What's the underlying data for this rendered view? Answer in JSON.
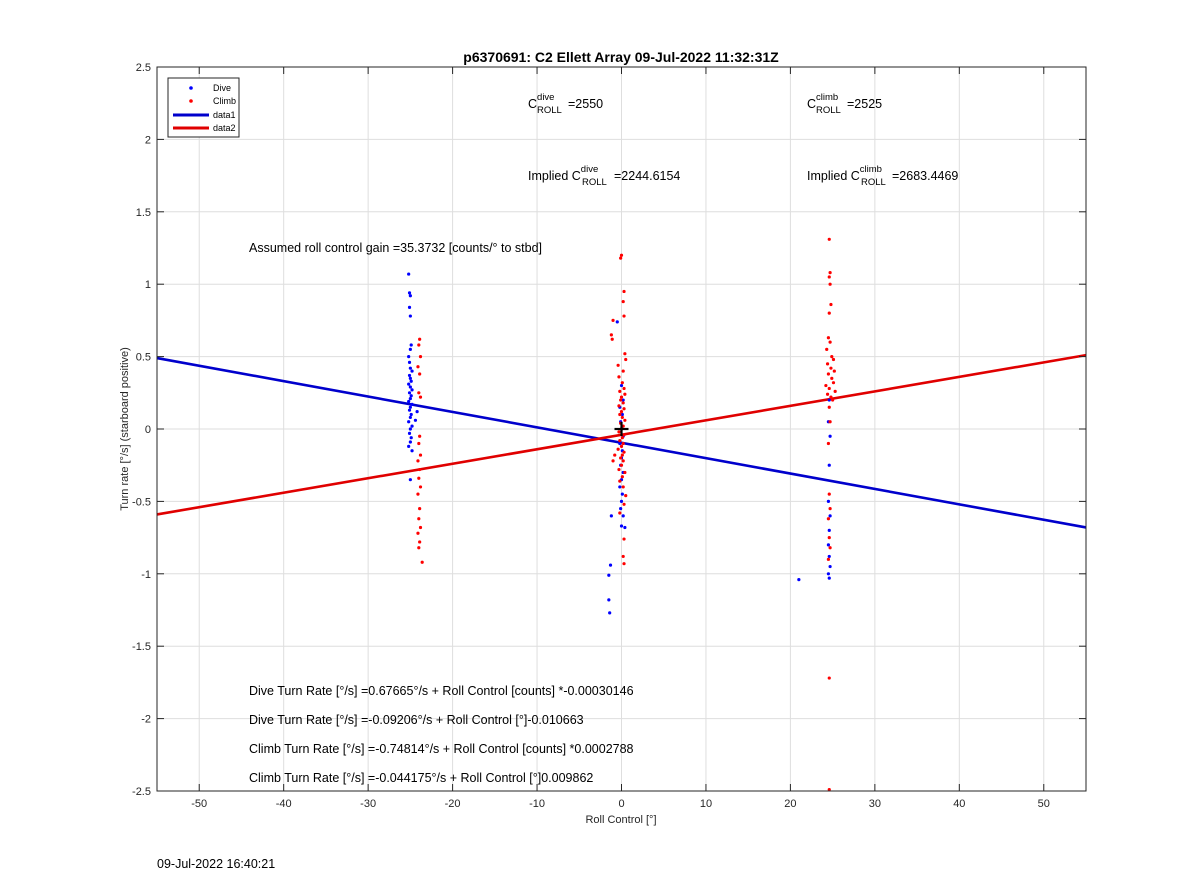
{
  "chart_data": {
    "type": "scatter",
    "title": "p6370691: C2 Ellett Array 09-Jul-2022 11:32:31Z",
    "xlabel": "Roll Control [°]",
    "ylabel": "Turn rate [°/s] (starboard positive)",
    "xlim": [
      -55,
      55
    ],
    "ylim": [
      -2.5,
      2.5
    ],
    "xticks": [
      -50,
      -40,
      -30,
      -20,
      -10,
      0,
      10,
      20,
      30,
      40,
      50
    ],
    "yticks": [
      -2.5,
      -2,
      -1.5,
      -1,
      -0.5,
      0,
      0.5,
      1,
      1.5,
      2,
      2.5
    ],
    "grid": true,
    "legend": {
      "placement": "top-left",
      "entries": [
        "Dive",
        "Climb",
        "data1",
        "data2"
      ]
    },
    "series": [
      {
        "name": "Dive",
        "kind": "points",
        "color": "#0000ff",
        "points": [
          [
            -25.2,
            1.07
          ],
          [
            -25.1,
            0.94
          ],
          [
            -25.0,
            0.92
          ],
          [
            -25.1,
            0.84
          ],
          [
            -25.0,
            0.78
          ],
          [
            -24.9,
            0.58
          ],
          [
            -25.0,
            0.55
          ],
          [
            -25.2,
            0.5
          ],
          [
            -25.1,
            0.46
          ],
          [
            -25.0,
            0.42
          ],
          [
            -24.8,
            0.4
          ],
          [
            -25.1,
            0.37
          ],
          [
            -25.0,
            0.35
          ],
          [
            -24.9,
            0.33
          ],
          [
            -25.2,
            0.31
          ],
          [
            -25.0,
            0.29
          ],
          [
            -24.8,
            0.27
          ],
          [
            -25.1,
            0.25
          ],
          [
            -24.9,
            0.23
          ],
          [
            -25.0,
            0.21
          ],
          [
            -25.2,
            0.19
          ],
          [
            -24.8,
            0.17
          ],
          [
            -25.0,
            0.15
          ],
          [
            -25.1,
            0.13
          ],
          [
            -24.9,
            0.1
          ],
          [
            -25.0,
            0.08
          ],
          [
            -25.2,
            0.05
          ],
          [
            -24.8,
            0.02
          ],
          [
            -25.0,
            0.0
          ],
          [
            -25.1,
            -0.03
          ],
          [
            -24.9,
            -0.06
          ],
          [
            -25.0,
            -0.09
          ],
          [
            -25.2,
            -0.12
          ],
          [
            -24.8,
            -0.15
          ],
          [
            -25.0,
            -0.35
          ],
          [
            -24.2,
            0.12
          ],
          [
            -24.4,
            0.06
          ],
          [
            0.0,
            0.3
          ],
          [
            0.2,
            0.2
          ],
          [
            -0.2,
            0.15
          ],
          [
            0.1,
            0.1
          ],
          [
            -0.1,
            0.05
          ],
          [
            0.0,
            0.0
          ],
          [
            0.2,
            -0.05
          ],
          [
            -0.2,
            -0.1
          ],
          [
            0.1,
            -0.15
          ],
          [
            0.0,
            -0.2
          ],
          [
            -0.1,
            -0.25
          ],
          [
            0.2,
            -0.3
          ],
          [
            0.0,
            -0.35
          ],
          [
            -0.2,
            -0.4
          ],
          [
            0.1,
            -0.45
          ],
          [
            0.0,
            -0.5
          ],
          [
            -0.1,
            -0.55
          ],
          [
            0.2,
            -0.6
          ],
          [
            0.0,
            -0.67
          ],
          [
            -1.2,
            -0.6
          ],
          [
            -1.3,
            -0.94
          ],
          [
            -1.5,
            -1.01
          ],
          [
            -1.5,
            -1.18
          ],
          [
            -1.4,
            -1.27
          ],
          [
            -0.5,
            0.74
          ],
          [
            0.4,
            -0.68
          ],
          [
            24.6,
            0.2
          ],
          [
            24.5,
            0.05
          ],
          [
            24.7,
            -0.05
          ],
          [
            24.6,
            -0.25
          ],
          [
            24.5,
            -0.5
          ],
          [
            24.7,
            -0.6
          ],
          [
            24.6,
            -0.7
          ],
          [
            24.5,
            -0.8
          ],
          [
            24.6,
            -0.88
          ],
          [
            24.7,
            -0.95
          ],
          [
            24.5,
            -1.0
          ],
          [
            24.6,
            -1.03
          ],
          [
            21.0,
            -1.04
          ]
        ]
      },
      {
        "name": "Climb",
        "kind": "points",
        "color": "#ff0000",
        "points": [
          [
            -23.9,
            0.62
          ],
          [
            -24.0,
            0.58
          ],
          [
            -23.8,
            0.5
          ],
          [
            -24.1,
            0.43
          ],
          [
            -23.9,
            0.38
          ],
          [
            -24.0,
            0.25
          ],
          [
            -23.8,
            0.22
          ],
          [
            -23.9,
            -0.05
          ],
          [
            -24.0,
            -0.1
          ],
          [
            -23.8,
            -0.18
          ],
          [
            -24.1,
            -0.22
          ],
          [
            -23.9,
            -0.28
          ],
          [
            -24.0,
            -0.34
          ],
          [
            -23.8,
            -0.4
          ],
          [
            -24.1,
            -0.45
          ],
          [
            -23.9,
            -0.55
          ],
          [
            -24.0,
            -0.62
          ],
          [
            -23.8,
            -0.68
          ],
          [
            -24.1,
            -0.72
          ],
          [
            -23.9,
            -0.78
          ],
          [
            -24.0,
            -0.82
          ],
          [
            -23.6,
            -0.92
          ],
          [
            0.0,
            1.2
          ],
          [
            -0.1,
            1.18
          ],
          [
            0.3,
            0.95
          ],
          [
            0.2,
            0.88
          ],
          [
            0.3,
            0.78
          ],
          [
            -1.0,
            0.75
          ],
          [
            -1.2,
            0.65
          ],
          [
            -1.1,
            0.62
          ],
          [
            0.4,
            0.52
          ],
          [
            0.5,
            0.48
          ],
          [
            -0.4,
            0.44
          ],
          [
            0.2,
            0.4
          ],
          [
            -0.3,
            0.36
          ],
          [
            0.1,
            0.32
          ],
          [
            0.3,
            0.28
          ],
          [
            -0.2,
            0.26
          ],
          [
            0.4,
            0.24
          ],
          [
            0.0,
            0.22
          ],
          [
            -0.1,
            0.2
          ],
          [
            0.2,
            0.18
          ],
          [
            -0.3,
            0.16
          ],
          [
            0.3,
            0.14
          ],
          [
            0.0,
            0.12
          ],
          [
            -0.2,
            0.1
          ],
          [
            0.1,
            0.08
          ],
          [
            0.4,
            0.06
          ],
          [
            -0.1,
            0.04
          ],
          [
            0.2,
            0.02
          ],
          [
            0.0,
            0.0
          ],
          [
            -0.3,
            -0.02
          ],
          [
            0.3,
            -0.04
          ],
          [
            0.1,
            -0.06
          ],
          [
            -0.2,
            -0.08
          ],
          [
            0.2,
            -0.1
          ],
          [
            0.0,
            -0.12
          ],
          [
            -0.4,
            -0.14
          ],
          [
            0.3,
            -0.16
          ],
          [
            0.1,
            -0.18
          ],
          [
            -0.1,
            -0.2
          ],
          [
            0.2,
            -0.22
          ],
          [
            0.0,
            -0.25
          ],
          [
            -0.3,
            -0.28
          ],
          [
            0.4,
            -0.3
          ],
          [
            0.1,
            -0.33
          ],
          [
            -0.2,
            -0.36
          ],
          [
            0.2,
            -0.4
          ],
          [
            -1.0,
            -0.22
          ],
          [
            -0.8,
            -0.18
          ],
          [
            0.5,
            -0.46
          ],
          [
            0.3,
            -0.52
          ],
          [
            -0.2,
            -0.58
          ],
          [
            0.3,
            -0.76
          ],
          [
            0.2,
            -0.88
          ],
          [
            0.3,
            -0.93
          ],
          [
            24.6,
            1.31
          ],
          [
            24.7,
            1.08
          ],
          [
            24.6,
            1.05
          ],
          [
            24.7,
            1.0
          ],
          [
            24.8,
            0.86
          ],
          [
            24.6,
            0.8
          ],
          [
            24.5,
            0.63
          ],
          [
            24.7,
            0.6
          ],
          [
            24.3,
            0.55
          ],
          [
            24.9,
            0.5
          ],
          [
            25.1,
            0.48
          ],
          [
            24.4,
            0.45
          ],
          [
            24.8,
            0.42
          ],
          [
            25.2,
            0.4
          ],
          [
            24.5,
            0.38
          ],
          [
            24.9,
            0.35
          ],
          [
            25.1,
            0.32
          ],
          [
            24.2,
            0.3
          ],
          [
            24.6,
            0.28
          ],
          [
            25.3,
            0.26
          ],
          [
            24.4,
            0.24
          ],
          [
            24.8,
            0.22
          ],
          [
            25.0,
            0.2
          ],
          [
            24.6,
            0.15
          ],
          [
            24.7,
            0.05
          ],
          [
            24.5,
            -0.1
          ],
          [
            24.6,
            -0.45
          ],
          [
            24.7,
            -0.55
          ],
          [
            24.5,
            -0.62
          ],
          [
            24.6,
            -0.75
          ],
          [
            24.7,
            -0.82
          ],
          [
            24.5,
            -0.9
          ],
          [
            24.6,
            -1.72
          ],
          [
            24.6,
            -2.49
          ]
        ]
      },
      {
        "name": "data1",
        "kind": "line",
        "color": "#0000cc",
        "points": [
          [
            -55,
            0.49
          ],
          [
            55,
            -0.68
          ]
        ]
      },
      {
        "name": "data2",
        "kind": "line",
        "color": "#e00000",
        "points": [
          [
            -55,
            -0.59
          ],
          [
            55,
            0.51
          ]
        ]
      }
    ],
    "marker": {
      "x": 0.0,
      "y": 0.0,
      "symbol": "+"
    },
    "annotations": {
      "c_dive": {
        "base": "C",
        "sup": "dive",
        "sub": "ROLL",
        "value": "=2550"
      },
      "c_climb": {
        "base": "C",
        "sup": "climb",
        "sub": "ROLL",
        "value": "=2525"
      },
      "implied_dive": {
        "prefix": "Implied C",
        "sup": "dive",
        "sub": "ROLL",
        "value": "=2244.6154"
      },
      "implied_climb": {
        "prefix": "Implied C",
        "sup": "climb",
        "sub": "ROLL",
        "value": "=2683.4469"
      },
      "gain": "Assumed roll control gain =35.3732 [counts/° to stbd]",
      "eq_lines": [
        "Dive Turn Rate [°/s] =0.67665°/s + Roll Control [counts] *-0.00030146",
        "Dive Turn Rate [°/s] =-0.09206°/s + Roll Control [°]-0.010663",
        "Climb Turn Rate [°/s] =-0.74814°/s + Roll Control [counts] *0.0002788",
        "Climb Turn Rate [°/s] =-0.044175°/s + Roll Control [°]0.009862"
      ]
    }
  },
  "footer_date": "09-Jul-2022 16:40:21"
}
